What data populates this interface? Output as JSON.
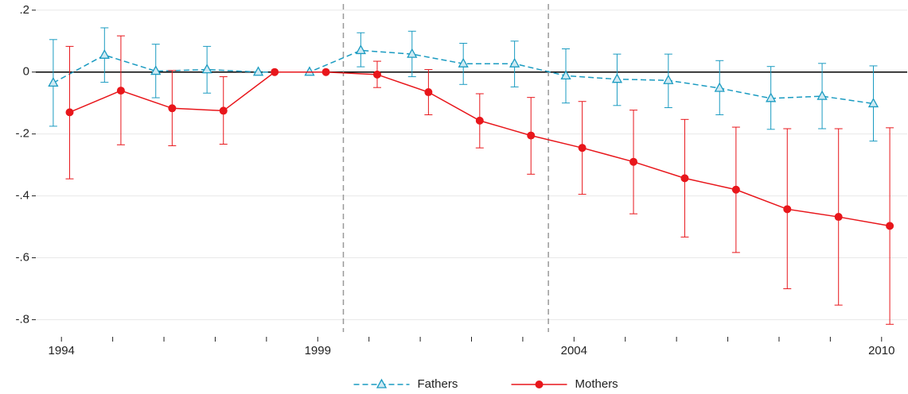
{
  "chart_data": {
    "type": "line",
    "x": [
      1994,
      1995,
      1996,
      1997,
      1998,
      1999,
      2000,
      2001,
      2002,
      2003,
      2004,
      2005,
      2006,
      2007,
      2008,
      2009,
      2010
    ],
    "series": [
      {
        "name": "Fathers",
        "color": "#1a9bc1",
        "line_style": "dashed",
        "marker": "triangle",
        "values": [
          -0.035,
          0.055,
          0.003,
          0.008,
          0,
          0,
          0.07,
          0.058,
          0.027,
          0.027,
          -0.012,
          -0.023,
          -0.027,
          -0.052,
          -0.085,
          -0.078,
          -0.102
        ],
        "lower": [
          -0.175,
          -0.033,
          -0.083,
          -0.068,
          null,
          null,
          0.017,
          -0.015,
          -0.04,
          -0.048,
          -0.1,
          -0.108,
          -0.115,
          -0.138,
          -0.185,
          -0.183,
          -0.223
        ],
        "upper": [
          0.105,
          0.143,
          0.09,
          0.083,
          null,
          null,
          0.127,
          0.132,
          0.093,
          0.1,
          0.075,
          0.058,
          0.058,
          0.037,
          0.018,
          0.028,
          0.02
        ]
      },
      {
        "name": "Mothers",
        "color": "#e8161b",
        "line_style": "solid",
        "marker": "circle",
        "values": [
          -0.13,
          -0.06,
          -0.117,
          -0.125,
          0,
          0,
          -0.008,
          -0.065,
          -0.157,
          -0.205,
          -0.245,
          -0.29,
          -0.343,
          -0.38,
          -0.443,
          -0.468,
          -0.497
        ],
        "lower": [
          -0.345,
          -0.235,
          -0.238,
          -0.233,
          null,
          null,
          -0.05,
          -0.138,
          -0.245,
          -0.33,
          -0.395,
          -0.458,
          -0.533,
          -0.583,
          -0.7,
          -0.753,
          -0.815
        ],
        "upper": [
          0.083,
          0.117,
          0.005,
          -0.015,
          null,
          null,
          0.035,
          0.008,
          -0.07,
          -0.082,
          -0.095,
          -0.123,
          -0.153,
          -0.178,
          -0.183,
          -0.183,
          -0.18
        ]
      }
    ],
    "xlim": [
      1993.5,
      2010.5
    ],
    "xticks": [
      1994,
      1999,
      2004,
      2010
    ],
    "xminorticks": [
      1995,
      1996,
      1997,
      1998,
      2000,
      2001,
      2002,
      2003,
      2005,
      2006,
      2007,
      2008,
      2009
    ],
    "ylim": [
      -0.84,
      0.22
    ],
    "yticks": [
      {
        "value": 0.2,
        "label": ".2"
      },
      0,
      {
        "value": -0.2,
        "label": "-.2"
      },
      {
        "value": -0.4,
        "label": "-.4"
      },
      {
        "value": -0.6,
        "label": "-.6"
      },
      {
        "value": -0.8,
        "label": "-.8"
      }
    ],
    "vlines": [
      1999.5,
      2003.5
    ],
    "grid": true,
    "legend": "bottom"
  }
}
